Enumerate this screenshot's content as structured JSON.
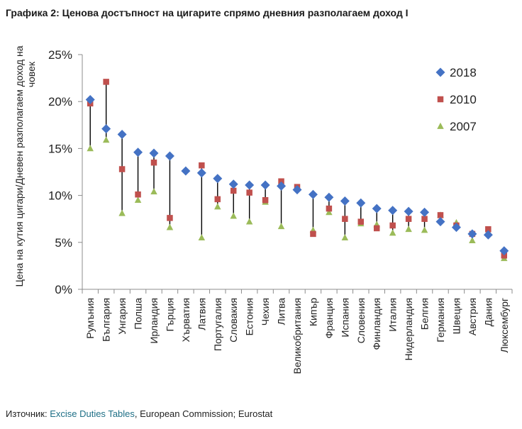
{
  "title": "Графика 2: Ценова достъпност на цигарите спрямо дневния разполагаем доход I",
  "source": {
    "prefix": "Източник: ",
    "link_text": "Excise Duties Tables",
    "suffix": ", European Commission; Eurostat"
  },
  "colors": {
    "s2018": "#4472C4",
    "s2010": "#C0504D",
    "s2007": "#9BBB59",
    "axis": "#8c8c8c",
    "droplines": "#000000"
  },
  "chart_data": {
    "type": "scatter",
    "ylabel": "Цена на кутия цигари/Дневен разполагаем доход на човек",
    "ylim": [
      0,
      25
    ],
    "yticks": [
      0,
      5,
      10,
      15,
      20,
      25
    ],
    "ytick_labels": [
      "0%",
      "5%",
      "10%",
      "15%",
      "20%",
      "25%"
    ],
    "legend_position": "top-right",
    "categories": [
      "Румъния",
      "България",
      "Унгария",
      "Полша",
      "Ирландия",
      "Гърция",
      "Хърватия",
      "Латвия",
      "Португалия",
      "Словакия",
      "Естония",
      "Чехия",
      "Литва",
      "Великобритания",
      "Кипър",
      "Франция",
      "Испания",
      "Словения",
      "Финландия",
      "Италия",
      "Нидерландия",
      "Белгия",
      "Германия",
      "Швеция",
      "Австрия",
      "Дания",
      "Люксембург"
    ],
    "series": [
      {
        "name": "2018",
        "marker": "diamond",
        "values": [
          20.2,
          17.1,
          16.5,
          14.6,
          14.5,
          14.2,
          12.6,
          12.4,
          11.8,
          11.2,
          11.1,
          11.1,
          11.0,
          10.6,
          10.1,
          9.8,
          9.4,
          9.2,
          8.6,
          8.4,
          8.3,
          8.2,
          7.2,
          6.6,
          5.9,
          5.8,
          4.1
        ]
      },
      {
        "name": "2010",
        "marker": "square",
        "values": [
          19.8,
          22.1,
          12.8,
          10.1,
          13.5,
          7.6,
          null,
          13.2,
          9.6,
          10.5,
          10.3,
          9.5,
          11.5,
          10.9,
          5.9,
          8.6,
          7.5,
          7.2,
          6.5,
          6.8,
          7.5,
          7.5,
          7.9,
          6.8,
          5.9,
          6.4,
          3.6
        ]
      },
      {
        "name": "2007",
        "marker": "triangle",
        "values": [
          15.0,
          15.9,
          8.1,
          9.5,
          10.4,
          6.6,
          null,
          5.5,
          8.8,
          7.8,
          7.2,
          9.3,
          6.7,
          10.8,
          6.3,
          8.2,
          5.5,
          7.0,
          6.9,
          6.0,
          6.4,
          6.3,
          7.9,
          7.1,
          5.2,
          6.1,
          3.3
        ]
      }
    ]
  }
}
